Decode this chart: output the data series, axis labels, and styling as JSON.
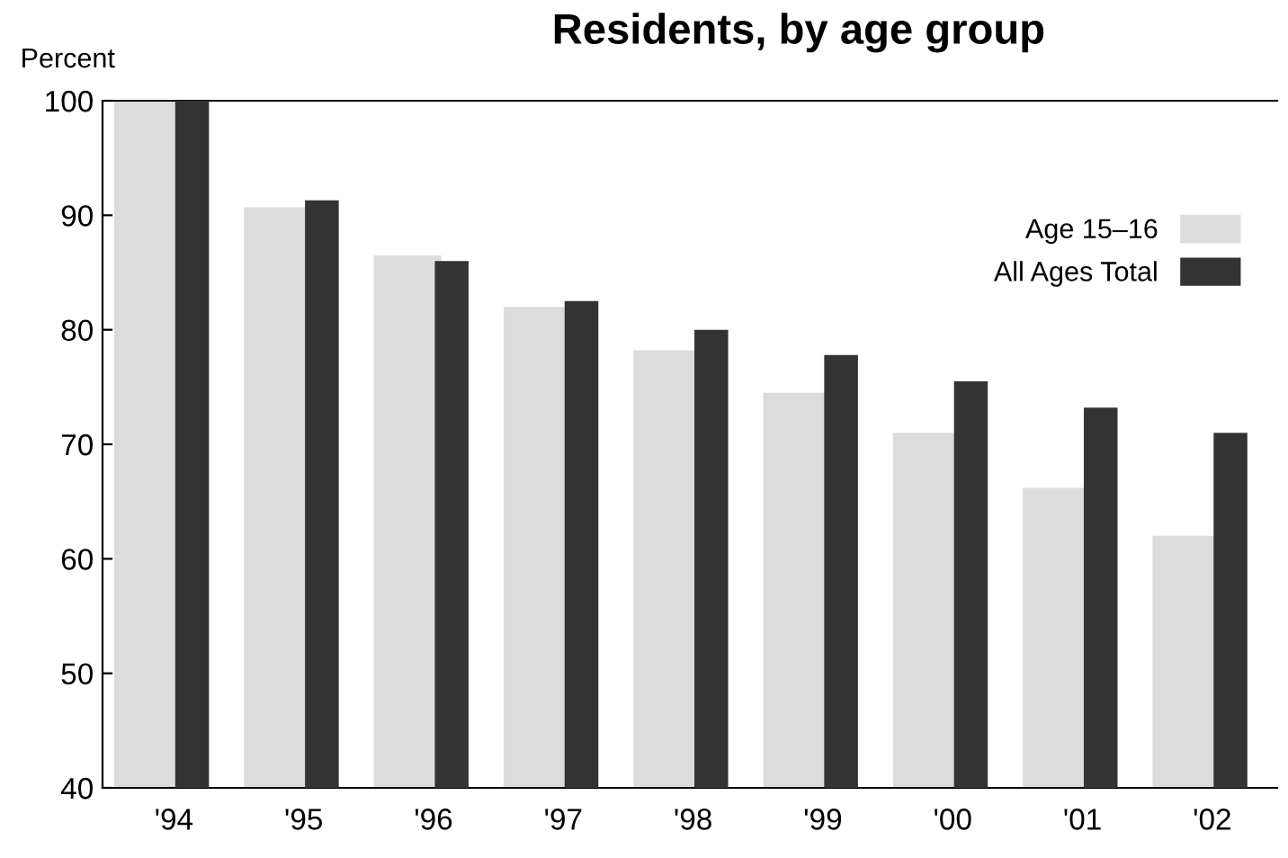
{
  "chart_data": {
    "type": "bar",
    "title": "Residents, by age group",
    "ylabel": "Percent",
    "categories": [
      "'94",
      "'95",
      "'96",
      "'97",
      "'98",
      "'99",
      "'00",
      "'01",
      "'02"
    ],
    "series": [
      {
        "name": "Age 15–16",
        "color": "#dcdcdc",
        "values": [
          100,
          90.7,
          86.5,
          82,
          78.2,
          74.5,
          71,
          66.2,
          62
        ]
      },
      {
        "name": "All Ages Total",
        "color": "#333333",
        "values": [
          100,
          91.3,
          86,
          82.5,
          80,
          77.8,
          75.5,
          73.2,
          71
        ]
      }
    ],
    "ylim": [
      40,
      100
    ],
    "yticks": [
      40,
      50,
      60,
      70,
      80,
      90,
      100
    ],
    "grid": false,
    "legend": "top right"
  }
}
